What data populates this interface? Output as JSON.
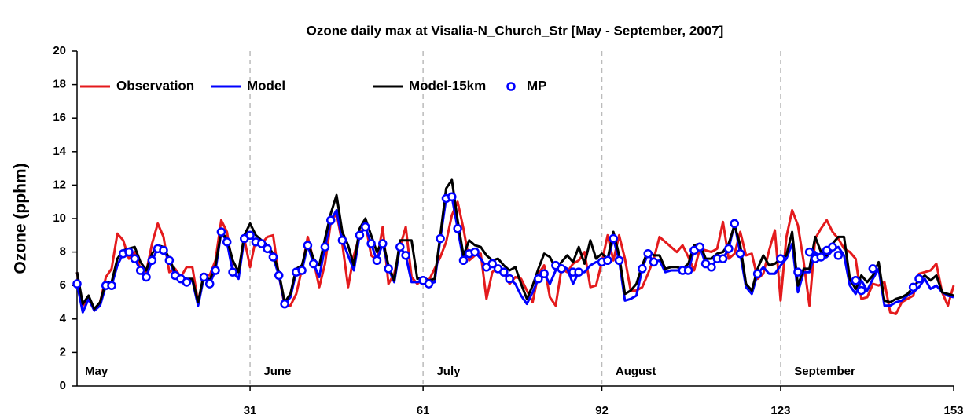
{
  "chart_data": {
    "type": "line",
    "title": "Ozone daily max at  Visalia-N_Church_Str [May - September, 2007]",
    "y_label": "Ozone (pphm)",
    "xlim": [
      1,
      153
    ],
    "xticks": [
      31,
      61,
      92,
      123,
      153
    ],
    "ylim": [
      0,
      20
    ],
    "yticks": [
      0,
      2,
      4,
      6,
      8,
      10,
      12,
      14,
      16,
      18,
      20
    ],
    "grid": "x-dashed",
    "legend": "top-left",
    "month_labels": [
      {
        "text": "May",
        "x": 1
      },
      {
        "text": "June",
        "x": 32
      },
      {
        "text": "July",
        "x": 62
      },
      {
        "text": "August",
        "x": 93
      },
      {
        "text": "September",
        "x": 124
      }
    ],
    "series": [
      {
        "name": "Observation",
        "color": "#e41a1c",
        "style": "line",
        "values": [
          6.8,
          4.8,
          5.2,
          4.5,
          5.0,
          6.5,
          7.0,
          9.1,
          8.7,
          7.6,
          8.0,
          7.0,
          6.8,
          8.5,
          9.7,
          8.9,
          6.8,
          7.0,
          6.5,
          7.1,
          7.1,
          5.0,
          6.7,
          6.6,
          7.5,
          9.9,
          9.2,
          7.0,
          6.8,
          8.8,
          7.1,
          8.8,
          8.5,
          8.9,
          9.0,
          6.6,
          4.8,
          4.8,
          5.5,
          7.0,
          8.9,
          7.5,
          5.9,
          7.3,
          9.8,
          10.3,
          8.5,
          5.9,
          7.8,
          9.0,
          9.7,
          7.8,
          7.5,
          9.5,
          6.1,
          6.7,
          8.3,
          9.5,
          6.5,
          6.1,
          6.4,
          6.3,
          7.0,
          7.7,
          8.6,
          10.2,
          11.0,
          9.4,
          7.5,
          7.8,
          7.9,
          5.2,
          6.8,
          7.1,
          6.8,
          6.1,
          6.5,
          6.4,
          5.7,
          5.0,
          6.7,
          7.2,
          5.3,
          4.8,
          7.0,
          6.8,
          7.3,
          7.5,
          8.0,
          5.9,
          6.0,
          7.4,
          9.0,
          7.5,
          9.0,
          7.6,
          5.7,
          5.7,
          5.9,
          6.7,
          7.6,
          8.9,
          8.6,
          8.3,
          8.0,
          8.4,
          7.7,
          6.9,
          8.2,
          8.1,
          8.0,
          8.2,
          9.8,
          7.6,
          7.9,
          9.2,
          7.8,
          7.9,
          6.4,
          6.7,
          8.1,
          9.3,
          5.1,
          8.9,
          10.5,
          9.6,
          7.4,
          4.8,
          8.8,
          9.4,
          9.9,
          9.2,
          8.8,
          8.2,
          8.0,
          7.6,
          5.2,
          5.3,
          6.1,
          6.0,
          6.2,
          4.4,
          4.3,
          5.0,
          5.2,
          5.4,
          6.7,
          6.8,
          6.9,
          7.3,
          5.6,
          4.8,
          6.0
        ]
      },
      {
        "name": "Model",
        "color": "#0000ff",
        "style": "line",
        "values": [
          6.1,
          4.4,
          5.2,
          4.5,
          4.8,
          6.0,
          6.0,
          7.2,
          7.9,
          8.0,
          7.6,
          6.9,
          6.5,
          7.5,
          8.2,
          8.1,
          7.5,
          6.6,
          6.4,
          6.2,
          6.3,
          4.8,
          6.5,
          6.1,
          6.9,
          9.2,
          8.6,
          6.8,
          6.4,
          8.8,
          9.0,
          8.6,
          8.5,
          8.2,
          7.7,
          6.6,
          4.9,
          5.3,
          6.8,
          6.9,
          8.4,
          7.3,
          6.5,
          8.3,
          9.9,
          10.5,
          8.7,
          7.8,
          6.9,
          9.0,
          9.5,
          8.5,
          7.5,
          8.5,
          7.0,
          6.2,
          8.3,
          7.8,
          6.2,
          6.2,
          6.3,
          6.1,
          6.2,
          8.8,
          11.2,
          11.3,
          9.4,
          7.5,
          7.9,
          8.0,
          7.6,
          7.1,
          7.3,
          7.0,
          6.8,
          6.4,
          6.1,
          5.4,
          4.9,
          5.6,
          6.4,
          6.7,
          6.1,
          6.9,
          7.2,
          7.0,
          6.1,
          6.8,
          6.8,
          7.2,
          7.4,
          7.4,
          7.5,
          8.8,
          7.5,
          5.1,
          5.2,
          5.4,
          7.0,
          7.9,
          7.4,
          7.5,
          6.8,
          6.9,
          6.9,
          6.9,
          6.9,
          8.1,
          8.3,
          7.3,
          7.1,
          7.6,
          7.6,
          8.2,
          9.7,
          7.9,
          5.9,
          5.5,
          6.7,
          7.1,
          6.7,
          6.7,
          7.2,
          7.6,
          8.5,
          5.6,
          6.8,
          6.8,
          8.0,
          7.6,
          7.7,
          8.1,
          8.3,
          7.8,
          6.0,
          5.5,
          6.3,
          5.7,
          6.4,
          7.0,
          4.8,
          4.8,
          5.0,
          5.1,
          5.4,
          5.6,
          5.9,
          6.4,
          5.8,
          6.0,
          5.6,
          5.4,
          5.3
        ]
      },
      {
        "name": "Model-15km",
        "color": "#000000",
        "style": "line",
        "values": [
          6.8,
          4.9,
          5.4,
          4.6,
          5.0,
          6.2,
          6.2,
          7.6,
          8.1,
          8.2,
          8.3,
          7.4,
          6.9,
          7.9,
          8.4,
          8.3,
          7.6,
          6.8,
          6.5,
          6.4,
          6.4,
          5.0,
          6.7,
          6.3,
          7.2,
          9.2,
          8.8,
          7.5,
          6.8,
          9.0,
          9.7,
          9.0,
          8.7,
          8.4,
          7.9,
          6.8,
          5.0,
          5.5,
          7.0,
          7.2,
          8.6,
          7.6,
          7.2,
          8.8,
          10.3,
          11.4,
          9.2,
          8.4,
          7.2,
          9.4,
          10.0,
          9.0,
          8.0,
          8.7,
          7.2,
          6.3,
          8.7,
          8.7,
          8.7,
          6.4,
          6.5,
          6.3,
          6.4,
          9.0,
          11.8,
          12.3,
          9.9,
          7.8,
          8.7,
          8.4,
          8.3,
          7.8,
          7.5,
          7.6,
          7.2,
          6.9,
          7.1,
          6.1,
          5.2,
          6.0,
          7.0,
          7.9,
          7.7,
          7.0,
          7.4,
          7.8,
          7.4,
          8.3,
          7.3,
          8.7,
          7.6,
          7.9,
          7.6,
          9.2,
          7.8,
          5.5,
          5.7,
          6.1,
          7.2,
          8.1,
          7.8,
          7.8,
          7.0,
          7.1,
          7.1,
          7.0,
          7.3,
          8.4,
          8.5,
          7.6,
          7.6,
          7.9,
          8.0,
          8.5,
          9.6,
          8.4,
          6.1,
          5.7,
          7.0,
          7.8,
          7.2,
          7.3,
          7.6,
          7.8,
          9.2,
          6.0,
          7.0,
          7.0,
          8.9,
          8.0,
          7.8,
          8.5,
          8.9,
          8.9,
          6.4,
          5.8,
          6.6,
          6.2,
          6.6,
          7.4,
          5.1,
          5.0,
          5.2,
          5.3,
          5.5,
          5.9,
          6.3,
          6.6,
          6.3,
          6.6,
          5.6,
          5.5,
          5.4
        ]
      },
      {
        "name": "MP",
        "color": "#0000ff",
        "style": "points",
        "values": [
          6.1,
          null,
          null,
          null,
          null,
          6.0,
          6.0,
          null,
          7.9,
          8.0,
          7.6,
          6.9,
          6.5,
          7.5,
          8.2,
          8.1,
          7.5,
          6.6,
          6.4,
          6.2,
          null,
          null,
          6.5,
          6.1,
          6.9,
          9.2,
          8.6,
          6.8,
          null,
          8.8,
          9.0,
          8.6,
          8.5,
          8.2,
          7.7,
          6.6,
          4.9,
          null,
          6.8,
          6.9,
          8.4,
          7.3,
          null,
          8.3,
          9.9,
          null,
          8.7,
          null,
          null,
          9.0,
          9.5,
          8.5,
          7.5,
          8.5,
          7.0,
          null,
          8.3,
          7.8,
          null,
          null,
          6.3,
          6.1,
          null,
          8.8,
          11.2,
          11.3,
          9.4,
          7.5,
          7.9,
          8.0,
          null,
          7.1,
          7.3,
          7.0,
          6.8,
          6.4,
          null,
          null,
          null,
          null,
          6.4,
          6.7,
          null,
          7.2,
          7.0,
          null,
          6.8,
          6.8,
          null,
          null,
          null,
          7.4,
          7.5,
          8.8,
          7.5,
          null,
          null,
          null,
          7.0,
          7.9,
          7.4,
          null,
          null,
          null,
          null,
          6.9,
          6.9,
          8.1,
          8.3,
          7.3,
          7.1,
          7.6,
          7.6,
          8.2,
          9.7,
          7.9,
          null,
          null,
          6.7,
          null,
          null,
          null,
          7.6,
          null,
          null,
          6.8,
          null,
          8.0,
          7.6,
          7.7,
          8.1,
          8.3,
          7.8,
          null,
          null,
          6.3,
          5.7,
          null,
          7.0,
          null,
          null,
          null,
          null,
          null,
          null,
          5.9,
          6.4,
          null,
          null,
          null,
          null,
          null
        ]
      }
    ]
  }
}
